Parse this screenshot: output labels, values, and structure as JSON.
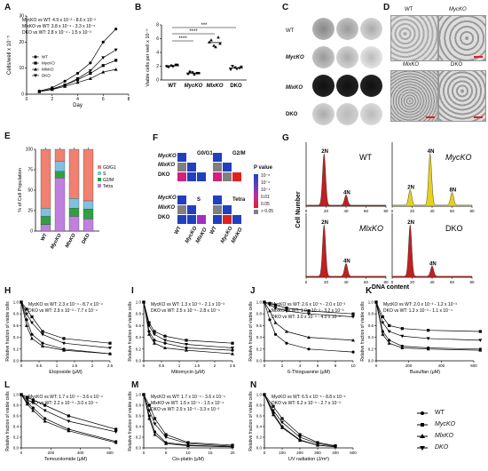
{
  "panel_letters": {
    "A": "A",
    "B": "B",
    "C": "C",
    "D": "D",
    "E": "E",
    "F": "F",
    "G": "G",
    "H": "H",
    "I": "I",
    "J": "J",
    "K": "K",
    "L": "L",
    "M": "M",
    "N": "N"
  },
  "genotypes": {
    "wt": "WT",
    "myc": "MycKO",
    "mlx": "MlxKO",
    "dko": "DKO"
  },
  "panel_c_rows": [
    "WT",
    "MycKO",
    "MlxKO",
    "DKO"
  ],
  "panel_d_labels": [
    "WT",
    "MycKO",
    "MlxKO",
    "DKO"
  ],
  "panel_f": {
    "subpanels": [
      "G0/G1",
      "G2/M",
      "S",
      "Tetra"
    ],
    "legend_title": "P value",
    "legend_ticks": [
      "10⁻⁸",
      "10⁻⁶",
      "10⁻⁴",
      "0.01",
      "0.05",
      "> 0.05"
    ]
  },
  "panel_g": {
    "ylabel": "Cell Number",
    "xlabel": "DNA content",
    "peak_labels": {
      "wt": [
        "2N",
        "4N"
      ],
      "myc": [
        "2N",
        "4N",
        "8N"
      ],
      "mlx": [
        "2N",
        "4N"
      ],
      "dko": [
        "2N",
        "4N"
      ]
    },
    "ticks": [
      "0",
      "20",
      "40",
      "60",
      "80"
    ],
    "colors": {
      "wt": "#c02020",
      "myc": "#e8d020",
      "mlx": "#c02020",
      "dko": "#c02020"
    }
  },
  "chart_data": [
    {
      "id": "A",
      "type": "line",
      "ylabel": "Cells/well x 10⁻⁵",
      "xlabel": "Day",
      "xlim": [
        0,
        8
      ],
      "ylim": [
        0,
        30
      ],
      "xticks": [
        0,
        2,
        4,
        6,
        8
      ],
      "yticks": [
        0,
        10,
        20,
        30
      ],
      "annotations": [
        "MycKO vs WT: 4.9 x 10⁻² - 8.6 x 10⁻²",
        "MlxKO vs WT: 3.8 x 10⁻⁴ - 3.3 x 10⁻⁵",
        "DKO vs WT: 2.8 x 10⁻⁴ - 1.5 x 10⁻³"
      ],
      "x": [
        1,
        2,
        3,
        4,
        5,
        6,
        7
      ],
      "series": [
        {
          "name": "WT",
          "values": [
            1.2,
            2.5,
            5,
            8,
            12,
            20,
            25
          ]
        },
        {
          "name": "MycKO",
          "values": [
            1,
            2,
            3.5,
            5.5,
            8,
            11,
            13
          ]
        },
        {
          "name": "MlxKO",
          "values": [
            1,
            1.8,
            3,
            4.5,
            6,
            8.5,
            9.5
          ]
        },
        {
          "name": "DKO",
          "values": [
            1,
            2,
            3.5,
            6,
            9,
            14,
            17
          ]
        }
      ]
    },
    {
      "id": "B",
      "type": "scatter",
      "ylabel": "Viable cells per well x 10⁻⁵",
      "ylim": [
        0,
        8
      ],
      "yticks": [
        0,
        2,
        4,
        6,
        8
      ],
      "categories": [
        "WT",
        "MycKO",
        "MlxKO",
        "DKO"
      ],
      "significance": [
        "****",
        "****",
        "***"
      ],
      "values": [
        [
          2.0,
          2.1,
          2.2,
          1.9,
          2.0,
          2.2
        ],
        [
          0.9,
          1.1,
          1.0,
          1.2,
          0.8,
          1.0
        ],
        [
          5.5,
          5.0,
          6.2,
          5.8,
          4.8,
          5.3
        ],
        [
          1.5,
          1.8,
          1.7,
          2.0,
          1.6,
          1.9
        ]
      ]
    },
    {
      "id": "E",
      "type": "bar",
      "ylabel": "% of Cell Population",
      "ylim": [
        0,
        100
      ],
      "yticks": [
        0,
        25,
        50,
        75,
        100
      ],
      "categories": [
        "WT",
        "MycKO",
        "MlxKO",
        "DKO"
      ],
      "legend": [
        "G0/G1",
        "S",
        "G2/M",
        "Tetra"
      ],
      "series": [
        {
          "name": "G0/G1",
          "values": [
            72,
            15,
            60,
            63
          ]
        },
        {
          "name": "S",
          "values": [
            10,
            12,
            12,
            10
          ]
        },
        {
          "name": "G2/M",
          "values": [
            10,
            8,
            10,
            12
          ]
        },
        {
          "name": "Tetra",
          "values": [
            8,
            65,
            18,
            15
          ]
        }
      ]
    },
    {
      "id": "H",
      "type": "line",
      "xlabel": "Etoposide (μM)",
      "ylabel": "Relative fraction of viable cells",
      "xlim": [
        0,
        2.5
      ],
      "ylim": [
        0,
        1.0
      ],
      "xticks": [
        0,
        0.5,
        1.0,
        1.5,
        2.0,
        2.5
      ],
      "yticks": [
        0,
        0.2,
        0.4,
        0.6,
        0.8,
        1.0
      ],
      "annotations": [
        "MycKO vs WT: 2.3 x 10⁻⁴ - 8.7 x 10⁻⁴",
        "DKO vs WT: 2.9 x 10⁻³ - 7.7 x 10⁻⁴"
      ],
      "x": [
        0,
        0.15,
        0.3,
        0.6,
        1.2,
        2.5
      ],
      "series": [
        {
          "name": "WT",
          "values": [
            1.0,
            0.7,
            0.45,
            0.3,
            0.2,
            0.12
          ]
        },
        {
          "name": "MycKO",
          "values": [
            1.0,
            0.88,
            0.75,
            0.5,
            0.38,
            0.3
          ]
        },
        {
          "name": "MlxKO",
          "values": [
            1.0,
            0.6,
            0.38,
            0.25,
            0.18,
            0.12
          ]
        },
        {
          "name": "DKO",
          "values": [
            1.0,
            0.8,
            0.65,
            0.45,
            0.3,
            0.22
          ]
        }
      ]
    },
    {
      "id": "I",
      "type": "line",
      "xlabel": "Mitomycin (μM)",
      "ylabel": "Relative fraction of viable cells",
      "xlim": [
        0,
        2.5
      ],
      "ylim": [
        0,
        1.0
      ],
      "xticks": [
        0,
        0.5,
        1.0,
        1.5,
        2.0,
        2.5
      ],
      "yticks": [
        0,
        0.2,
        0.4,
        0.6,
        0.8,
        1.0
      ],
      "annotations": [
        "MycKO vs WT: 1.3 x 10⁻³ - 2.1 x 10⁻³",
        "DKO vs WT: 2.5 x 10⁻³ - 2.8 x 10⁻⁴"
      ],
      "x": [
        0,
        0.15,
        0.3,
        0.6,
        1.2,
        2.5
      ],
      "series": [
        {
          "name": "WT",
          "values": [
            1.0,
            0.5,
            0.35,
            0.3,
            0.22,
            0.18
          ]
        },
        {
          "name": "MycKO",
          "values": [
            1.0,
            0.65,
            0.5,
            0.42,
            0.35,
            0.3
          ]
        },
        {
          "name": "MlxKO",
          "values": [
            1.0,
            0.45,
            0.3,
            0.22,
            0.18,
            0.12
          ]
        },
        {
          "name": "DKO",
          "values": [
            1.0,
            0.6,
            0.45,
            0.35,
            0.28,
            0.22
          ]
        }
      ]
    },
    {
      "id": "J",
      "type": "line",
      "xlabel": "6-Thioguanine (μM)",
      "ylabel": "Relative fraction of viable cells",
      "xlim": [
        0,
        10
      ],
      "ylim": [
        0,
        1.0
      ],
      "xticks": [
        0,
        2,
        4,
        6,
        8,
        10
      ],
      "yticks": [
        0,
        0.2,
        0.4,
        0.6,
        0.8,
        1.0
      ],
      "annotations": [
        "MycKO vs WT: 2.6 x 10⁻⁵ - 2.0 x 10⁻³",
        "MlxKO vs WT: 1.0 x 10⁻³ - 3.2 x 10⁻³",
        "DKO vs WT: 3.0 x 10⁻⁵ - 4.0 x 10⁻⁶"
      ],
      "x": [
        0,
        0.6,
        1.25,
        2.5,
        5,
        10
      ],
      "series": [
        {
          "name": "WT",
          "values": [
            1.0,
            0.7,
            0.45,
            0.3,
            0.2,
            0.15
          ]
        },
        {
          "name": "MycKO",
          "values": [
            1.0,
            0.98,
            0.95,
            0.9,
            0.85,
            0.8
          ]
        },
        {
          "name": "MlxKO",
          "values": [
            1.0,
            0.85,
            0.65,
            0.5,
            0.4,
            0.35
          ]
        },
        {
          "name": "DKO",
          "values": [
            1.0,
            0.95,
            0.9,
            0.85,
            0.8,
            0.75
          ]
        }
      ]
    },
    {
      "id": "K",
      "type": "line",
      "xlabel": "Busulfan (μM)",
      "ylabel": "Relative fraction of viable cells",
      "xlim": [
        0,
        600
      ],
      "ylim": [
        0,
        1.0
      ],
      "xticks": [
        0,
        200,
        400,
        600
      ],
      "yticks": [
        0,
        0.2,
        0.4,
        0.6,
        0.8,
        1.0
      ],
      "annotations": [
        "MycKO vs WT: 2.0 x 10⁻³ - 1.2 x 10⁻³",
        "DKO vs WT: 1.2 x 10⁻³ - 1.1 x 10⁻⁴"
      ],
      "x": [
        0,
        40,
        80,
        160,
        320,
        640
      ],
      "series": [
        {
          "name": "WT",
          "values": [
            1.0,
            0.5,
            0.35,
            0.25,
            0.22,
            0.2
          ]
        },
        {
          "name": "MycKO",
          "values": [
            1.0,
            0.75,
            0.6,
            0.55,
            0.52,
            0.5
          ]
        },
        {
          "name": "MlxKO",
          "values": [
            1.0,
            0.45,
            0.3,
            0.22,
            0.2,
            0.18
          ]
        },
        {
          "name": "DKO",
          "values": [
            1.0,
            0.65,
            0.5,
            0.42,
            0.38,
            0.35
          ]
        }
      ]
    },
    {
      "id": "L",
      "type": "line",
      "xlabel": "Temozolomide (μM)",
      "ylabel": "Relative fraction of viable cells",
      "xlim": [
        0,
        600
      ],
      "ylim": [
        0,
        1.0
      ],
      "xticks": [
        0,
        200,
        400,
        600
      ],
      "yticks": [
        0,
        0.2,
        0.4,
        0.6,
        0.8,
        1.0
      ],
      "annotations": [
        "MycKO vs WT: 1.7 x 10⁻⁴ - 3.6 x 10⁻⁴",
        "DKO vs WT: 2.2 x 10⁻³ - 3.0 x 10⁻⁴"
      ],
      "x": [
        0,
        40,
        80,
        160,
        320,
        640
      ],
      "series": [
        {
          "name": "WT",
          "values": [
            1.0,
            0.85,
            0.75,
            0.55,
            0.35,
            0.12
          ]
        },
        {
          "name": "MycKO",
          "values": [
            1.0,
            0.95,
            0.9,
            0.8,
            0.6,
            0.35
          ]
        },
        {
          "name": "MlxKO",
          "values": [
            1.0,
            0.82,
            0.7,
            0.5,
            0.32,
            0.1
          ]
        },
        {
          "name": "DKO",
          "values": [
            1.0,
            0.9,
            0.85,
            0.7,
            0.5,
            0.3
          ]
        }
      ]
    },
    {
      "id": "M",
      "type": "line",
      "xlabel": "Cis-platin (μM)",
      "ylabel": "Relative fraction of viable cells",
      "xlim": [
        0,
        20
      ],
      "ylim": [
        0,
        1.0
      ],
      "xticks": [
        0,
        5,
        10,
        15,
        20
      ],
      "yticks": [
        0,
        0.2,
        0.4,
        0.6,
        0.8,
        1.0
      ],
      "annotations": [
        "MycKO vs WT: 1.7 x 10⁻⁴ - 3.6 x 10⁻⁴",
        "MlxKO vs WT: 1.5 x 10⁻⁴ - 1.5 x 10⁻⁴",
        "DKO vs WT: 2.9 x 10⁻³ - 3.3 x 10⁻²"
      ],
      "x": [
        0,
        1.25,
        2.5,
        5,
        10,
        20
      ],
      "series": [
        {
          "name": "WT",
          "values": [
            1.0,
            0.6,
            0.3,
            0.1,
            0.05,
            0.02
          ]
        },
        {
          "name": "MycKO",
          "values": [
            1.0,
            0.8,
            0.55,
            0.25,
            0.1,
            0.05
          ]
        },
        {
          "name": "MlxKO",
          "values": [
            1.0,
            0.55,
            0.25,
            0.08,
            0.04,
            0.02
          ]
        },
        {
          "name": "DKO",
          "values": [
            1.0,
            0.7,
            0.45,
            0.2,
            0.08,
            0.03
          ]
        }
      ]
    },
    {
      "id": "N",
      "type": "line",
      "xlabel": "UV radiation (J/m²)",
      "ylabel": "Relative fraction of viable cells",
      "xlim": [
        0,
        500
      ],
      "ylim": [
        0,
        1.0
      ],
      "xticks": [
        0,
        100,
        200,
        300,
        400,
        500
      ],
      "yticks": [
        0,
        0.2,
        0.4,
        0.6,
        0.8,
        1.0
      ],
      "annotations": [
        "MycKO vs WT: 6.5 x 10⁻⁶ - 8.8 x 10⁻⁶",
        "DKO vs WT: 6.2 x 10⁻⁵ - 2.7 x 10⁻³"
      ],
      "x": [
        0,
        50,
        100,
        200,
        300,
        400
      ],
      "series": [
        {
          "name": "WT",
          "values": [
            1.0,
            0.65,
            0.4,
            0.15,
            0.05,
            0.02
          ]
        },
        {
          "name": "MycKO",
          "values": [
            1.0,
            0.78,
            0.55,
            0.25,
            0.1,
            0.04
          ]
        },
        {
          "name": "MlxKO",
          "values": [
            1.0,
            0.62,
            0.38,
            0.14,
            0.05,
            0.02
          ]
        },
        {
          "name": "DKO",
          "values": [
            1.0,
            0.7,
            0.48,
            0.2,
            0.08,
            0.03
          ]
        }
      ]
    }
  ],
  "legend_bottom": [
    "WT",
    "MycKO",
    "MlxKO",
    "DKO"
  ]
}
